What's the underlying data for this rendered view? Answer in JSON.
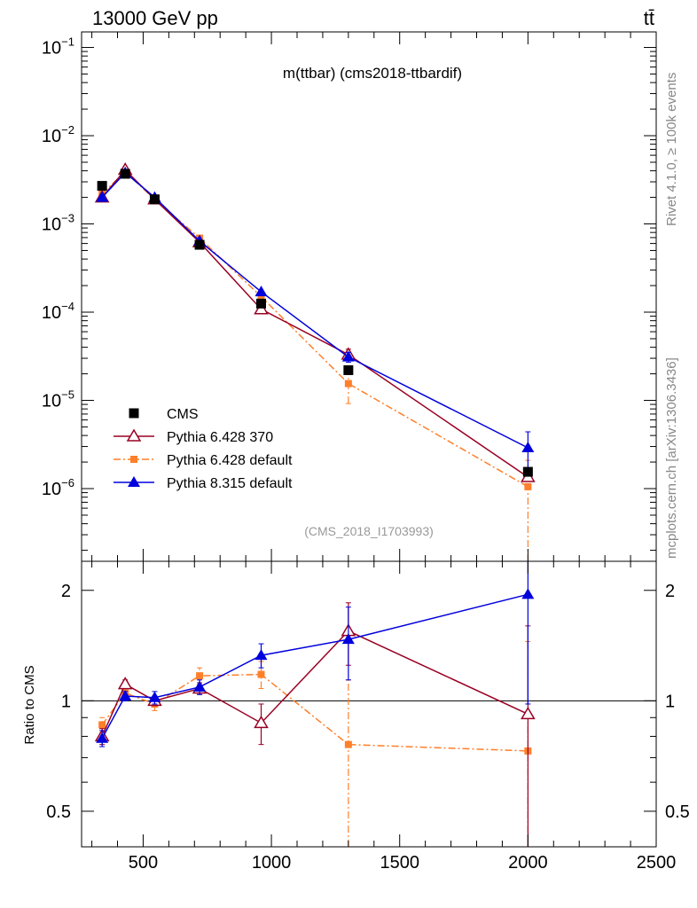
{
  "header": {
    "energy_label": "13000 GeV pp",
    "process_label": "tt̄",
    "plot_title": "m(ttbar) (cms2018-ttbardif)",
    "analysis_tag": "(CMS_2018_I1703993)",
    "side_rivet": "Rivet 4.1.0, ≥ 100k events",
    "side_source": "mcplots.cern.ch [arXiv:1306.3436]"
  },
  "colors": {
    "cms": "#000000",
    "py6_370": "#990022",
    "py6_default": "#ff7f2a",
    "py8": "#0000dd"
  },
  "chart_data": [
    {
      "type": "scatter",
      "panel": "main",
      "title": "m(ttbar) (cms2018-ttbardif)",
      "yscale": "log",
      "xlim": [
        260,
        2500
      ],
      "ylim": [
        1.5e-07,
        0.15
      ],
      "x_ticks": [
        500,
        1000,
        1500,
        2000,
        2500
      ],
      "y_ticks": [
        {
          "value": 1e-06,
          "mant": "10",
          "exp": "−6"
        },
        {
          "value": 1e-05,
          "mant": "10",
          "exp": "−5"
        },
        {
          "value": 0.0001,
          "mant": "10",
          "exp": "−4"
        },
        {
          "value": 0.001,
          "mant": "10",
          "exp": "−3"
        },
        {
          "value": 0.01,
          "mant": "10",
          "exp": "−2"
        },
        {
          "value": 0.1,
          "mant": "10",
          "exp": "−1"
        }
      ],
      "legend_position": "bottom-left",
      "x": [
        340,
        430,
        545,
        720,
        960,
        1300,
        2000
      ],
      "series": [
        {
          "name": "CMS",
          "key": "cms",
          "marker": "square-filled",
          "line": "none",
          "values": [
            0.0027,
            0.0037,
            0.0019,
            0.00058,
            0.000125,
            2.2e-05,
            1.55e-06
          ]
        },
        {
          "name": "Pythia 6.428 370",
          "key": "py6_370",
          "marker": "triangle-open",
          "line": "solid",
          "values": [
            0.002,
            0.0041,
            0.0019,
            0.00062,
            0.000108,
            3.3e-05,
            1.35e-06
          ],
          "err": [
            null,
            null,
            null,
            null,
            null,
            5e-06,
            null
          ]
        },
        {
          "name": "Pythia 6.428 default",
          "key": "py6_default",
          "marker": "square-small",
          "line": "dashdot",
          "values": [
            0.0022,
            0.0039,
            0.0019,
            0.00069,
            0.00015,
            1.55e-05,
            1.05e-06
          ],
          "err": [
            null,
            null,
            null,
            null,
            null,
            6.3e-06,
            1.04e-06
          ]
        },
        {
          "name": "Pythia 8.315 default",
          "key": "py8",
          "marker": "triangle-filled",
          "line": "solid",
          "values": [
            0.002,
            0.0038,
            0.002,
            0.00064,
            0.00017,
            3.1e-05,
            2.9e-06
          ],
          "err": [
            null,
            null,
            null,
            null,
            null,
            4e-06,
            1.5e-06
          ]
        }
      ]
    },
    {
      "type": "line",
      "panel": "ratio",
      "ylabel": "Ratio to CMS",
      "yscale": "log",
      "xlim": [
        260,
        2500
      ],
      "ylim": [
        0.4,
        2.4
      ],
      "y_ticks": [
        {
          "value": 0.5,
          "label": "0.5"
        },
        {
          "value": 1,
          "label": "1"
        },
        {
          "value": 2,
          "label": "2"
        }
      ],
      "reference_line": 1,
      "x": [
        340,
        430,
        545,
        720,
        960,
        1300,
        2000
      ],
      "series": [
        {
          "name": "Pythia 6.428 370",
          "key": "py6_370",
          "marker": "triangle-open",
          "line": "solid",
          "values": [
            0.8,
            1.11,
            1.0,
            1.08,
            0.87,
            1.55,
            0.92
          ],
          "err": [
            0.04,
            0.03,
            0.03,
            0.04,
            0.11,
            0.3,
            0.68
          ]
        },
        {
          "name": "Pythia 6.428 default",
          "key": "py6_default",
          "marker": "square-small",
          "line": "dashdot",
          "values": [
            0.86,
            1.05,
            0.98,
            1.17,
            1.18,
            0.76,
            0.73
          ],
          "err": [
            0.04,
            0.03,
            0.04,
            0.06,
            0.1,
            0.38,
            0.72
          ]
        },
        {
          "name": "Pythia 8.315 default",
          "key": "py8",
          "marker": "triangle-filled",
          "line": "solid",
          "values": [
            0.79,
            1.03,
            1.02,
            1.09,
            1.33,
            1.47,
            1.95
          ],
          "err": [
            0.04,
            0.03,
            0.04,
            0.05,
            0.1,
            0.33,
            0.97
          ]
        }
      ]
    }
  ]
}
